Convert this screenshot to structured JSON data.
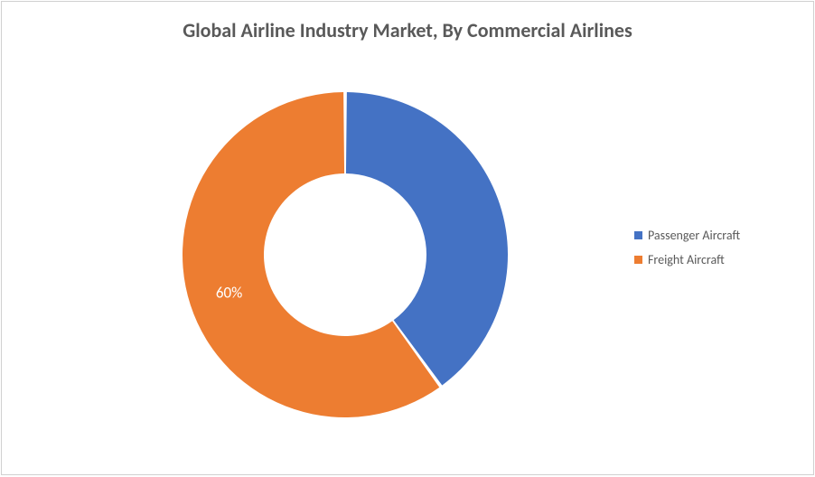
{
  "chart": {
    "type": "donut",
    "title": "Global Airline Industry Market, By Commercial Airlines",
    "title_fontsize": 22,
    "title_color": "#595959",
    "background_color": "#ffffff",
    "border_color": "#d0d0d0",
    "slices": [
      {
        "label": "Passenger Aircraft",
        "value": 40,
        "color": "#4472c4",
        "show_label": false
      },
      {
        "label": "Freight Aircraft",
        "value": 60,
        "color": "#ed7d31",
        "show_label": true,
        "label_text": "60%"
      }
    ],
    "donut_outer_radius": 180,
    "donut_inner_radius": 90,
    "slice_gap_deg": 1.2,
    "start_angle_deg": -90,
    "label_fontsize": 17,
    "label_color": "#ffffff",
    "legend": {
      "position": "right",
      "fontsize": 14,
      "text_color": "#595959"
    }
  }
}
